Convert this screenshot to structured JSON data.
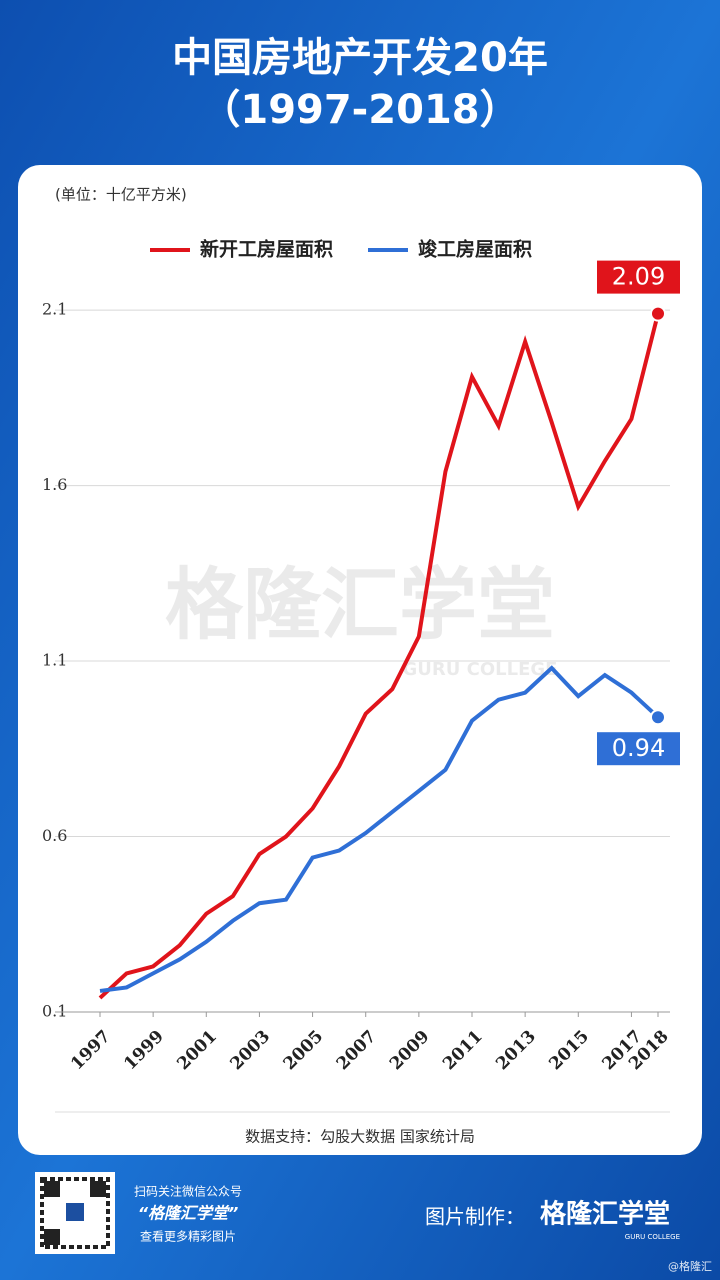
{
  "page": {
    "title_line1": "中国房地产开发20年",
    "title_line2": "（1997-2018）",
    "source": "数据支持：勾股大数据 国家统计局",
    "watermark": "格隆汇学堂",
    "watermark_sub": "GURU COLLEGE",
    "qr_line1": "扫码关注微信公众号",
    "qr_line2": "“格隆汇学堂”",
    "qr_line3": "查看更多精彩图片",
    "maker_label": "图片制作：",
    "maker_name": "格隆汇学堂",
    "maker_sub": "GURU COLLEGE",
    "credit": "@格隆汇"
  },
  "chart_data": {
    "type": "line",
    "unit_label": "(单位：十亿平方米)",
    "x": [
      1997,
      1998,
      1999,
      2000,
      2001,
      2002,
      2003,
      2004,
      2005,
      2006,
      2007,
      2008,
      2009,
      2010,
      2011,
      2012,
      2013,
      2014,
      2015,
      2016,
      2017,
      2018
    ],
    "series": [
      {
        "name": "新开工房屋面积",
        "color": "#e0141b",
        "values": [
          0.14,
          0.21,
          0.23,
          0.29,
          0.38,
          0.43,
          0.55,
          0.6,
          0.68,
          0.8,
          0.95,
          1.02,
          1.17,
          1.64,
          1.91,
          1.77,
          2.01,
          1.78,
          1.54,
          1.67,
          1.79,
          2.09
        ]
      },
      {
        "name": "竣工房屋面积",
        "color": "#2f6fd6",
        "values": [
          0.16,
          0.17,
          0.21,
          0.25,
          0.3,
          0.36,
          0.41,
          0.42,
          0.54,
          0.56,
          0.61,
          0.67,
          0.73,
          0.79,
          0.93,
          0.99,
          1.01,
          1.08,
          1.0,
          1.06,
          1.01,
          0.94
        ]
      }
    ],
    "xlim": [
      1997,
      2018
    ],
    "xticks": [
      1997,
      1999,
      2001,
      2003,
      2005,
      2007,
      2009,
      2011,
      2013,
      2015,
      2017,
      2018
    ],
    "ylim": [
      0.1,
      2.2
    ],
    "yticks": [
      0.1,
      0.6,
      1.1,
      1.6,
      2.1
    ],
    "grid": true
  }
}
